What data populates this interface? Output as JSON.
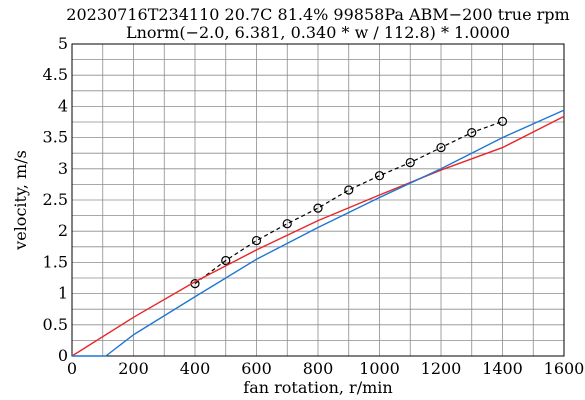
{
  "chart_data": {
    "type": "line",
    "title": "20230716T234110 20.7C 81.4% 99858Pa ABM−200 true rpm",
    "subtitle": "Lnorm(−2.0, 6.381, 0.340 * w / 112.8) * 1.0000",
    "xlabel": "fan rotation, r/min",
    "ylabel": "velocity, m/s",
    "xlim": [
      0,
      1600
    ],
    "ylim": [
      0,
      5
    ],
    "xticks": [
      0,
      200,
      400,
      600,
      800,
      1000,
      1200,
      1400,
      1600
    ],
    "xtick_labels": [
      "0",
      "200",
      "400",
      "600",
      "800",
      "1000",
      "1200",
      "1400",
      "1600"
    ],
    "yticks": [
      0,
      0.5,
      1,
      1.5,
      2,
      2.5,
      3,
      3.5,
      4,
      4.5,
      5
    ],
    "ytick_labels": [
      "0",
      "0.5",
      "1",
      "1.5",
      "2",
      "2.5",
      "3",
      "3.5",
      "4",
      "4.5",
      "5"
    ],
    "grid": true,
    "series": [
      {
        "style": "black-dashed-circles",
        "color": "#000000",
        "x": [
          400,
          500,
          600,
          700,
          800,
          900,
          1000,
          1100,
          1200,
          1300,
          1400
        ],
        "y": [
          1.16,
          1.53,
          1.85,
          2.12,
          2.37,
          2.66,
          2.89,
          3.1,
          3.34,
          3.58,
          3.76
        ]
      },
      {
        "style": "red-solid",
        "color": "#e8262a",
        "x": [
          0,
          200,
          400,
          600,
          800,
          1000,
          1200,
          1400,
          1600
        ],
        "y": [
          0.0,
          0.62,
          1.19,
          1.7,
          2.17,
          2.58,
          2.98,
          3.34,
          3.84
        ]
      },
      {
        "style": "blue-solid",
        "color": "#1f77d4",
        "x": [
          0,
          110,
          200,
          400,
          600,
          800,
          1000,
          1200,
          1400,
          1600
        ],
        "y": [
          0.0,
          0.0,
          0.34,
          0.95,
          1.55,
          2.06,
          2.54,
          3.0,
          3.5,
          3.94
        ]
      }
    ]
  }
}
